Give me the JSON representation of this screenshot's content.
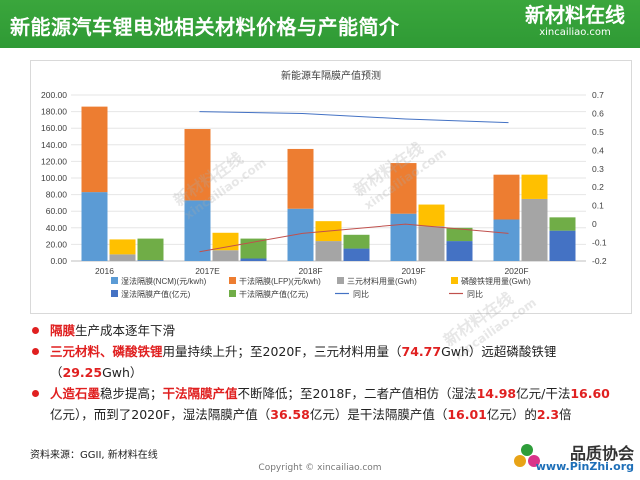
{
  "header": {
    "title": "新能源汽车锂电池相关材料价格与产能简介",
    "logo_main": "新材料在线",
    "logo_sub": "xincailiao.com"
  },
  "watermark": {
    "main": "新材料在线",
    "sub": "xincailiao.com"
  },
  "chart_data": {
    "type": "bar",
    "title": "新能源车隔膜产值预测",
    "categories": [
      "2016",
      "2017E",
      "2018F",
      "2019F",
      "2020F"
    ],
    "ylim": [
      0,
      200
    ],
    "y_ticks": [
      "0.00",
      "20.00",
      "40.00",
      "60.00",
      "80.00",
      "100.00",
      "120.00",
      "140.00",
      "160.00",
      "180.00",
      "200.00"
    ],
    "y2lim": [
      -0.2,
      0.7
    ],
    "y2_ticks": [
      "-0.2",
      "-0.1",
      "0",
      "0.1",
      "0.2",
      "0.3",
      "0.4",
      "0.5",
      "0.6",
      "0.7"
    ],
    "stacks": [
      {
        "name": "湿法隔膜(NCM)(元/kwh)",
        "color": "#5b9bd5",
        "stack": 1,
        "values": [
          83,
          73,
          63,
          57,
          50
        ]
      },
      {
        "name": "干法隔膜(LFP)(元/kwh)",
        "color": "#ed7d31",
        "stack": 1,
        "values": [
          103,
          86,
          72,
          61,
          54
        ]
      },
      {
        "name": "三元材料用量(Gwh)",
        "color": "#a5a5a5",
        "stack": 2,
        "values": [
          8,
          13,
          24,
          42,
          74.77
        ]
      },
      {
        "name": "磷酸铁锂用量(Gwh)",
        "color": "#ffc000",
        "stack": 2,
        "values": [
          18,
          21,
          24,
          26,
          29.25
        ]
      },
      {
        "name": "湿法隔膜产值(亿元)",
        "color": "#4472c4",
        "stack": 3,
        "values": [
          1,
          3,
          14.98,
          24,
          36.58
        ]
      },
      {
        "name": "干法隔膜产值(亿元)",
        "color": "#70ad47",
        "stack": 3,
        "values": [
          26,
          24,
          16.6,
          16,
          16.01
        ]
      }
    ],
    "lines": [
      {
        "name": "同比",
        "color": "#4472c4",
        "axis": "right",
        "values": [
          null,
          0.61,
          0.6,
          0.57,
          0.55
        ]
      },
      {
        "name": "同比",
        "color": "#c0504d",
        "axis": "right",
        "values": [
          null,
          -0.15,
          -0.05,
          0.0,
          -0.05
        ]
      }
    ],
    "legend_position": "bottom"
  },
  "bullets": {
    "b1": {
      "r1": "隔膜",
      "t1": "生产成本逐年下滑"
    },
    "b2": {
      "r1": "三元材料、磷酸铁锂",
      "t1": "用量持续上升；至2020F，三元材料用量（",
      "r2": "74.77",
      "t2": "Gwh）远超磷酸铁锂（",
      "r3": "29.25",
      "t3": "Gwh）"
    },
    "b3": {
      "r1": "人造石墨",
      "t1": "稳步提高；",
      "r2": "干法隔膜产值",
      "t2": "不断降低；至2018F，二者产值相仿（湿法",
      "r3": "14.98",
      "t3": "亿元/干法",
      "r4": "16.60",
      "t4": "亿元），而到了2020F，湿法隔膜产值（",
      "r5": "36.58",
      "t5": "亿元）是干法隔膜产值（",
      "r6": "16.01",
      "t6": "亿元）的",
      "r7": "2.3",
      "t7": "倍"
    }
  },
  "source": "资料来源：GGII, 新材料在线",
  "copyright": "Copyright © xincailiao.com",
  "brand": {
    "name": "品质协会",
    "url": "www.PinZhi.org"
  }
}
